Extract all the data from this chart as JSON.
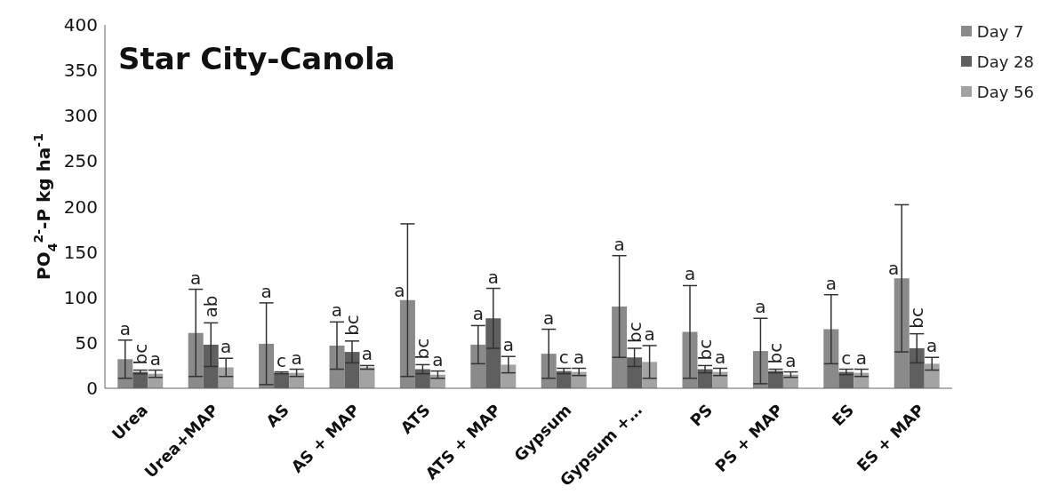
{
  "chart_data": {
    "type": "bar",
    "title": "Star City-Canola",
    "ylabel": "PO$_{4}$$^{2-}$-P kg ha$^{-1}$",
    "categories": [
      "Urea",
      "Urea+MAP",
      "AS",
      "AS + MAP",
      "ATS",
      "ATS + MAP",
      "Gypsum",
      "Gypsum +…",
      "PS",
      "PS + MAP",
      "ES",
      "ES + MAP"
    ],
    "series": [
      {
        "name": "Day 7",
        "color": "#8a8a8a",
        "values": [
          32,
          61,
          49,
          47,
          97,
          48,
          38,
          90,
          62,
          41,
          65,
          121
        ],
        "errors": [
          21,
          48,
          45,
          26,
          84,
          21,
          27,
          56,
          51,
          36,
          38,
          81
        ],
        "value_labels": [
          "a",
          "a",
          "a",
          "a",
          "a",
          "a",
          "a",
          "a",
          "a",
          "a",
          "a",
          "a"
        ]
      },
      {
        "name": "Day 28",
        "color": "#5f5f5f",
        "values": [
          18,
          48,
          17,
          40,
          21,
          77,
          19,
          34,
          21,
          19,
          18,
          44
        ],
        "errors": [
          2,
          24,
          1,
          12,
          5,
          33,
          3,
          10,
          4,
          2,
          3,
          16
        ],
        "value_labels": [
          "bc",
          "ab",
          "c",
          "bc",
          "bc",
          "a",
          "c",
          "bc",
          "bc",
          "bc",
          "c",
          "bc"
        ]
      },
      {
        "name": "Day 56",
        "color": "#a3a3a3",
        "values": [
          16,
          23,
          17,
          23,
          15,
          26,
          18,
          29,
          18,
          15,
          17,
          27
        ],
        "errors": [
          4,
          10,
          4,
          2,
          4,
          9,
          4,
          18,
          4,
          3,
          4,
          7
        ],
        "value_labels": [
          "a",
          "a",
          "a",
          "a",
          "a",
          "a",
          "a",
          "a",
          "a",
          "a",
          "a",
          "a"
        ]
      }
    ],
    "ylim": [
      0,
      400
    ],
    "yticks": [
      0,
      50,
      100,
      150,
      200,
      250,
      300,
      350,
      400
    ],
    "grid": false,
    "legend": "top right"
  }
}
